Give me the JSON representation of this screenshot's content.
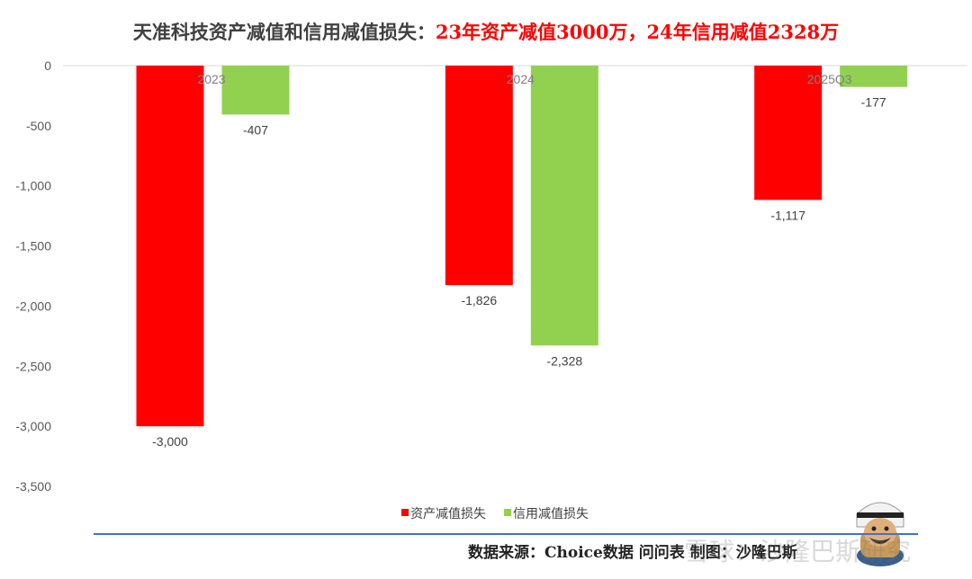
{
  "title": {
    "part1": "天准科技资产减值和信用减值损失：",
    "part2": "23年资产减值3000万，24年信用减值2328万"
  },
  "source": "数据来源：Choice数据  问问表  制图：沙隆巴斯",
  "watermark": "雪球：沙隆巴斯研究",
  "colors": {
    "asset": "#ff0000",
    "credit": "#92d050",
    "title_highlight": "#ff0000",
    "footer_rule": "#4472c4"
  },
  "icons": {
    "mascot": "cartoon-character-icon"
  },
  "chart_data": {
    "type": "bar",
    "categories": [
      "2023",
      "2024",
      "2025Q3"
    ],
    "series": [
      {
        "name": "资产减值损失",
        "values": [
          -3000,
          -1826,
          -1117
        ],
        "labels": [
          "-3,000",
          "-1,826",
          "-1,117"
        ]
      },
      {
        "name": "信用减值损失",
        "values": [
          -407,
          -2328,
          -177
        ],
        "labels": [
          "-407",
          "-2,328",
          "-177"
        ]
      }
    ],
    "ylim": [
      -3500,
      0
    ],
    "yticks": [
      0,
      -500,
      -1000,
      -1500,
      -2000,
      -2500,
      -3000,
      -3500
    ],
    "ytick_labels": [
      "0",
      "-500",
      "-1,000",
      "-1,500",
      "-2,000",
      "-2,500",
      "-3,000",
      "-3,500"
    ],
    "xlabel": "",
    "ylabel": "",
    "grid": false,
    "legend": "bottom"
  }
}
